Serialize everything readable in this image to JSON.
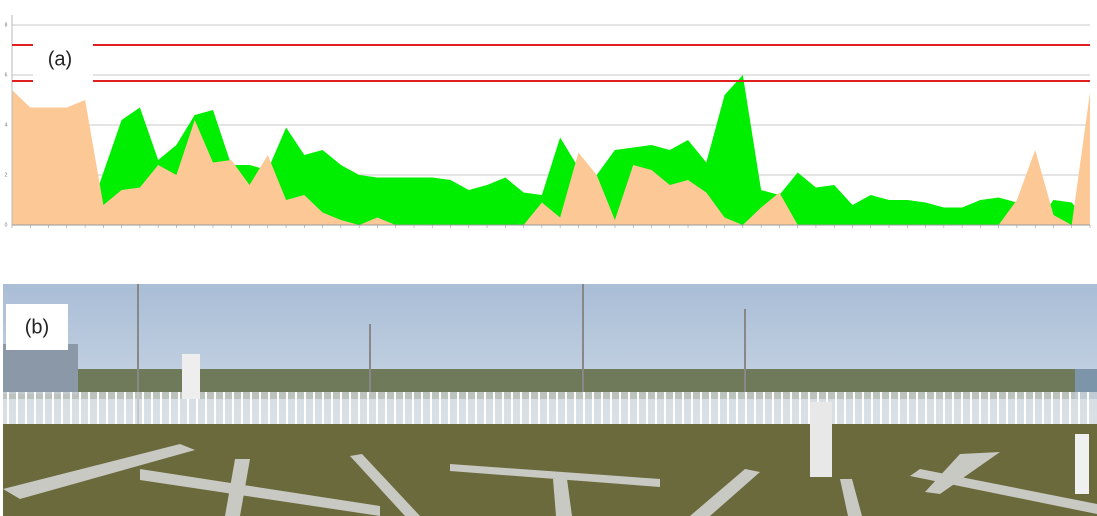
{
  "chart_data": {
    "type": "area",
    "panel_label": "(a)",
    "categories": [
      null,
      null,
      null,
      null,
      null,
      null,
      null,
      null,
      null,
      null,
      null,
      null,
      null,
      null,
      null,
      null,
      null,
      null,
      null,
      null,
      null,
      null,
      null,
      null,
      null,
      null,
      null,
      null,
      null,
      null,
      null,
      null,
      null,
      null,
      null,
      null,
      null,
      null,
      null,
      null,
      null,
      null,
      null,
      null,
      null,
      null,
      null,
      null,
      null,
      null,
      null,
      null,
      null,
      null,
      null,
      null,
      null,
      null,
      null,
      null
    ],
    "series": [
      {
        "color": "#00ee00",
        "values": [
          0,
          0,
          0,
          0,
          0,
          2.1,
          4.2,
          4.7,
          2.6,
          3.2,
          4.4,
          4.6,
          2.4,
          2.4,
          2.2,
          3.9,
          2.8,
          3.0,
          2.4,
          2.0,
          1.9,
          1.9,
          1.9,
          1.9,
          1.8,
          1.4,
          1.6,
          1.9,
          1.3,
          1.2,
          3.5,
          2.3,
          2.0,
          3.0,
          3.1,
          3.2,
          3.0,
          3.4,
          2.5,
          5.2,
          6.0,
          1.4,
          1.2,
          2.1,
          1.5,
          1.6,
          0.8,
          1.2,
          1.0,
          1.0,
          0.9,
          0.7,
          0.7,
          1.0,
          1.1,
          0.9,
          0,
          1.0,
          0.9,
          0
        ]
      },
      {
        "color": "#fcc896",
        "values": [
          5.4,
          4.7,
          4.7,
          4.7,
          5.0,
          0.8,
          1.4,
          1.5,
          2.4,
          2.0,
          4.2,
          2.5,
          2.6,
          1.6,
          2.8,
          1.0,
          1.2,
          0.5,
          0.2,
          0,
          0.3,
          0,
          0,
          0,
          0,
          0,
          0,
          0,
          0,
          0.9,
          0.3,
          2.9,
          2.0,
          0.2,
          2.4,
          2.2,
          1.6,
          1.8,
          1.3,
          0.3,
          0,
          0.7,
          1.3,
          0,
          0,
          0,
          0,
          0,
          0,
          0,
          0,
          0,
          0,
          0,
          0,
          1.0,
          3.0,
          0.4,
          0,
          5.3
        ]
      }
    ],
    "ylim": [
      0,
      8
    ],
    "yticks": [
      0,
      2,
      4,
      6,
      8
    ],
    "grid": true,
    "hlines": [
      {
        "value": 7.2,
        "color": "#e02020"
      },
      {
        "value": 5.76,
        "color": "#e02020"
      }
    ]
  },
  "photo": {
    "panel_label": "(b)"
  }
}
